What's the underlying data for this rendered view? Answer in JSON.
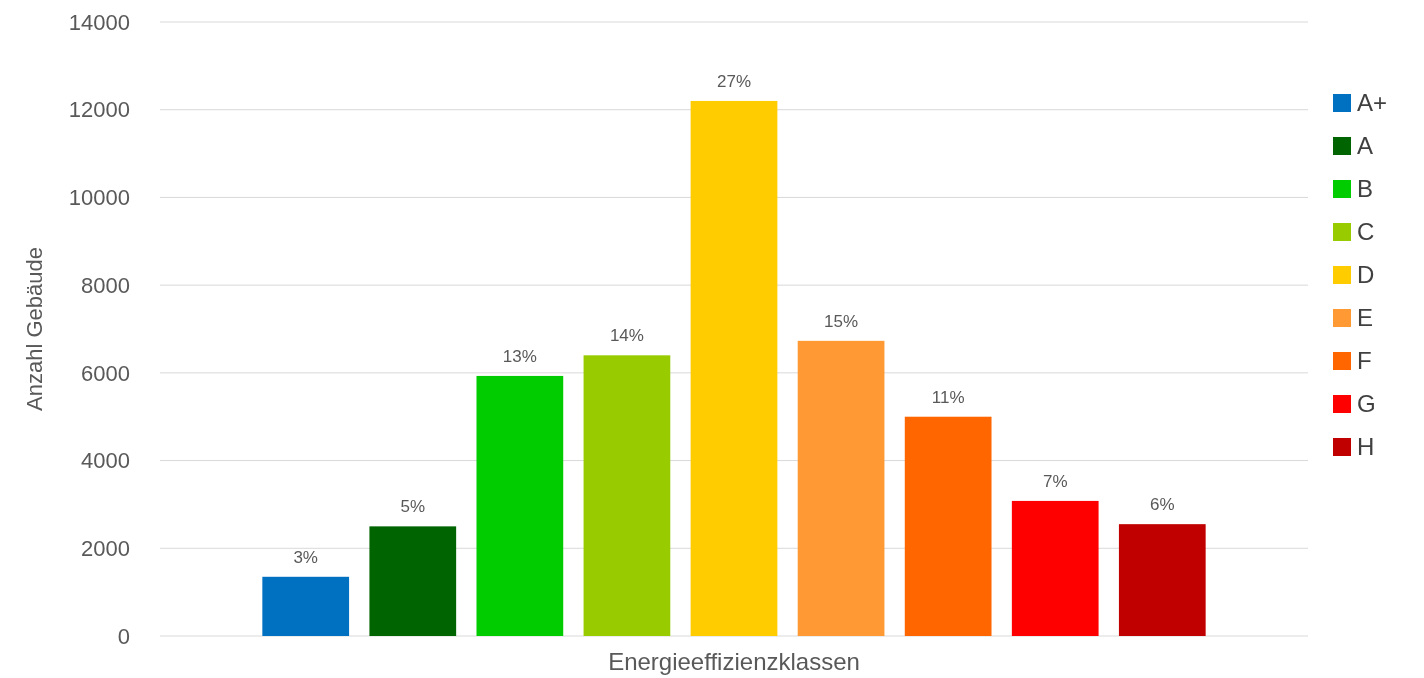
{
  "chart_data": {
    "type": "bar",
    "xlabel": "Energieeffizienzklassen",
    "ylabel": "Anzahl Gebäude",
    "categories": [
      null
    ],
    "series": [
      {
        "name": "A+",
        "color": "#0070c0",
        "values": [
          1350
        ]
      },
      {
        "name": "A",
        "color": "#006400",
        "values": [
          2500
        ]
      },
      {
        "name": "B",
        "color": "#00cc00",
        "values": [
          5930
        ]
      },
      {
        "name": "C",
        "color": "#99cc00",
        "values": [
          6400
        ]
      },
      {
        "name": "D",
        "color": "#ffcc00",
        "values": [
          12200
        ]
      },
      {
        "name": "E",
        "color": "#ff9933",
        "values": [
          6730
        ]
      },
      {
        "name": "F",
        "color": "#ff6600",
        "values": [
          5000
        ]
      },
      {
        "name": "G",
        "color": "#ff0000",
        "values": [
          3080
        ]
      },
      {
        "name": "H",
        "color": "#c00000",
        "values": [
          2550
        ]
      }
    ],
    "annotations": [
      {
        "text": "3%",
        "y": 1350
      },
      {
        "text": "5%",
        "y": 2500
      },
      {
        "text": "13%",
        "y": 5930
      },
      {
        "text": "14%",
        "y": 6400
      },
      {
        "text": "27%",
        "y": 12200
      },
      {
        "text": "15%",
        "y": 6730
      },
      {
        "text": "11%",
        "y": 5000
      },
      {
        "text": "7%",
        "y": 3080
      },
      {
        "text": "6%",
        "y": 2550
      }
    ],
    "ylim": [
      0,
      14000
    ],
    "yticks": [
      0,
      2000,
      4000,
      6000,
      8000,
      10000,
      12000,
      14000
    ],
    "grid": "y",
    "legend": "right"
  }
}
